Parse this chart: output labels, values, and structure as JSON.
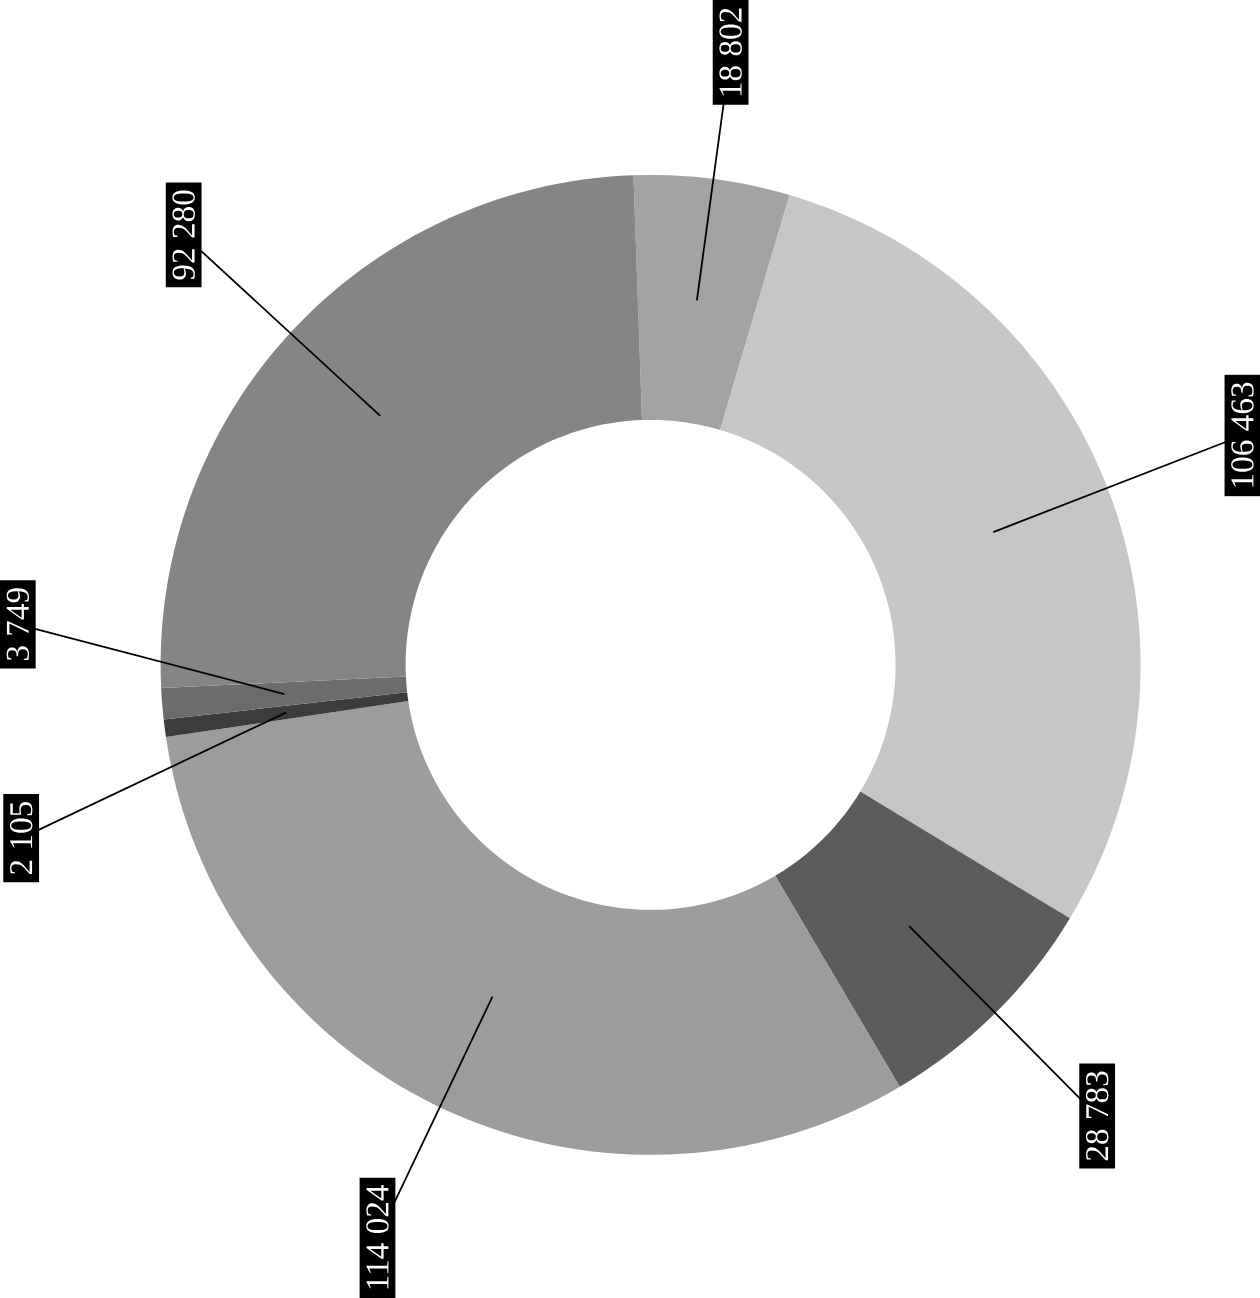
{
  "chart_data": {
    "type": "donut",
    "categories": [
      null,
      null,
      null,
      null,
      null,
      null,
      null
    ],
    "values": [
      18802,
      106463,
      28783,
      114024,
      2105,
      3749,
      92280
    ],
    "value_labels": [
      "18 802",
      "106 463",
      "28 783",
      "114 024",
      "2 105",
      "3 749",
      "92 280"
    ],
    "colors": [
      "#a3a3a3",
      "#c6c6c6",
      "#5c5c5c",
      "#9c9c9c",
      "#3c3c3c",
      "#6c6c6c",
      "#858585"
    ]
  }
}
